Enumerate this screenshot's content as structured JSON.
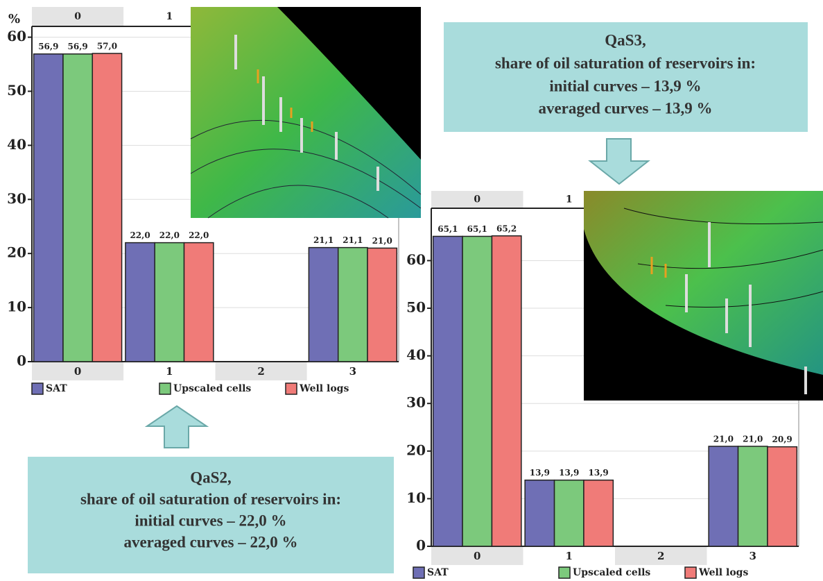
{
  "chart_data": [
    {
      "type": "bar",
      "y_label": "%",
      "tabs": [
        "0",
        "1"
      ],
      "categories": [
        "0",
        "1",
        "2",
        "3"
      ],
      "series": [
        {
          "name": "SAT",
          "color": "#6f6fb5",
          "values": [
            56.9,
            22.0,
            null,
            21.1
          ],
          "value_labels": [
            "56,9",
            "22,0",
            null,
            "21,1"
          ]
        },
        {
          "name": "Upscaled cells",
          "color": "#7cc97c",
          "values": [
            56.9,
            22.0,
            null,
            21.1
          ],
          "value_labels": [
            "56,9",
            "22,0",
            null,
            "21,1"
          ]
        },
        {
          "name": "Well logs",
          "color": "#f07b78",
          "values": [
            57.0,
            22.0,
            null,
            21.0
          ],
          "value_labels": [
            "57,0",
            "22,0",
            null,
            "21,0"
          ]
        }
      ],
      "ylim": [
        0,
        62
      ],
      "yticks": [
        0,
        10,
        20,
        30,
        40,
        50,
        60
      ],
      "grid": true,
      "annotation": [
        "QaS2,",
        "share of oil saturation of reservoirs in:",
        "initial curves – 22,0 %",
        "averaged curves – 22,0 %"
      ]
    },
    {
      "type": "bar",
      "tabs": [
        "0",
        "1"
      ],
      "categories": [
        "0",
        "1",
        "2",
        "3"
      ],
      "series": [
        {
          "name": "SAT",
          "color": "#6f6fb5",
          "values": [
            65.1,
            13.9,
            null,
            21.0
          ],
          "value_labels": [
            "65,1",
            "13,9",
            null,
            "21,0"
          ]
        },
        {
          "name": "Upscaled cells",
          "color": "#7cc97c",
          "values": [
            65.1,
            13.9,
            null,
            21.0
          ],
          "value_labels": [
            "65,1",
            "13,9",
            null,
            "21,0"
          ]
        },
        {
          "name": "Well logs",
          "color": "#f07b78",
          "values": [
            65.2,
            13.9,
            null,
            20.9
          ],
          "value_labels": [
            "65,2",
            "13,9",
            null,
            "20,9"
          ]
        }
      ],
      "ylim": [
        0,
        71
      ],
      "yticks": [
        0,
        10,
        20,
        30,
        40,
        50,
        60
      ],
      "grid": true,
      "annotation": [
        "QaS3,",
        "share of oil saturation of reservoirs in:",
        "initial curves – 13,9 %",
        "averaged curves – 13,9 %"
      ]
    }
  ]
}
